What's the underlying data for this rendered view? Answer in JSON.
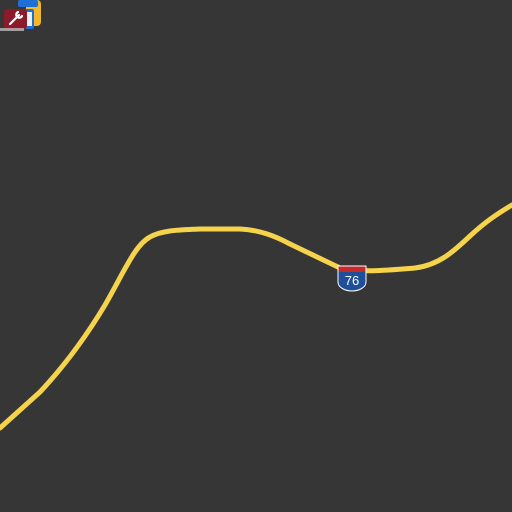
{
  "map": {
    "background_color": "#363636",
    "road": {
      "name": "I-76",
      "type": "interstate",
      "color": "#f5d34a"
    },
    "shield": {
      "number": "76",
      "top_color": "#c42a2a",
      "body_color": "#1f4f99",
      "text_color": "#ffffff"
    },
    "pois": [
      {
        "name": "wrench-icon",
        "color": "#8b1a2a"
      },
      {
        "name": "service-icon-blue",
        "color": "#1e6fd6"
      },
      {
        "name": "service-icon-yellow",
        "color": "#f0b82a"
      }
    ]
  }
}
